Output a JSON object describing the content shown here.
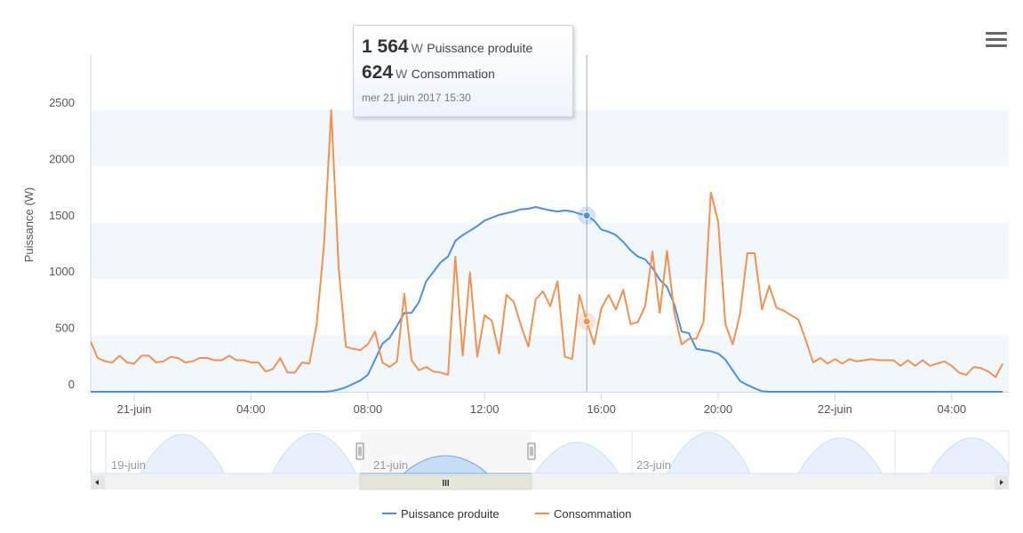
{
  "chart_data": {
    "type": "line",
    "title": "",
    "ylabel": "Puissance (W)",
    "xlabel": "",
    "ylim": [
      0,
      2600
    ],
    "y_ticks": [
      0,
      500,
      1000,
      1500,
      2000,
      2500
    ],
    "y_plot_bands": [
      [
        0,
        500
      ],
      [
        1000,
        1500
      ],
      [
        2000,
        2500
      ]
    ],
    "x_ticks": [
      {
        "time": "21 juin 00:00",
        "label": "21-juin"
      },
      {
        "time": "21 juin 04:00",
        "label": "04:00"
      },
      {
        "time": "21 juin 08:00",
        "label": "08:00"
      },
      {
        "time": "21 juin 12:00",
        "label": "12:00"
      },
      {
        "time": "21 juin 16:00",
        "label": "16:00"
      },
      {
        "time": "21 juin 20:00",
        "label": "20:00"
      },
      {
        "time": "22 juin 00:00",
        "label": "22-juin"
      },
      {
        "time": "22 juin 04:00",
        "label": "04:00"
      }
    ],
    "grid": false,
    "legend": "bottom",
    "series": [
      {
        "name": "Puissance produite",
        "color": "#4a90e2"
      },
      {
        "name": "Consommation",
        "color": "#f39150"
      }
    ],
    "data": [
      [
        "20 juin 22:30",
        0,
        450
      ],
      [
        "20 juin 22:45",
        0,
        300
      ],
      [
        "20 juin 23:00",
        0,
        270
      ],
      [
        "20 juin 23:15",
        0,
        260
      ],
      [
        "20 juin 23:30",
        0,
        320
      ],
      [
        "20 juin 23:45",
        0,
        260
      ],
      [
        "21 juin 00:00",
        0,
        250
      ],
      [
        "21 juin 00:15",
        0,
        320
      ],
      [
        "21 juin 00:30",
        0,
        320
      ],
      [
        "21 juin 00:45",
        0,
        260
      ],
      [
        "21 juin 01:00",
        0,
        270
      ],
      [
        "21 juin 01:15",
        0,
        310
      ],
      [
        "21 juin 01:30",
        0,
        300
      ],
      [
        "21 juin 01:45",
        0,
        260
      ],
      [
        "21 juin 02:00",
        0,
        270
      ],
      [
        "21 juin 02:15",
        0,
        300
      ],
      [
        "21 juin 02:30",
        0,
        300
      ],
      [
        "21 juin 02:45",
        0,
        280
      ],
      [
        "21 juin 03:00",
        0,
        280
      ],
      [
        "21 juin 03:15",
        0,
        320
      ],
      [
        "21 juin 03:30",
        0,
        280
      ],
      [
        "21 juin 03:45",
        0,
        280
      ],
      [
        "21 juin 04:00",
        0,
        260
      ],
      [
        "21 juin 04:15",
        0,
        260
      ],
      [
        "21 juin 04:30",
        0,
        180
      ],
      [
        "21 juin 04:45",
        0,
        200
      ],
      [
        "21 juin 05:00",
        0,
        300
      ],
      [
        "21 juin 05:15",
        0,
        170
      ],
      [
        "21 juin 05:30",
        0,
        170
      ],
      [
        "21 juin 05:45",
        0,
        260
      ],
      [
        "21 juin 06:00",
        0,
        250
      ],
      [
        "21 juin 06:15",
        0,
        600
      ],
      [
        "21 juin 06:30",
        0,
        1300
      ],
      [
        "21 juin 06:45",
        5,
        2500
      ],
      [
        "21 juin 07:00",
        20,
        1100
      ],
      [
        "21 juin 07:15",
        40,
        400
      ],
      [
        "21 juin 07:30",
        70,
        380
      ],
      [
        "21 juin 07:45",
        100,
        370
      ],
      [
        "21 juin 08:00",
        150,
        420
      ],
      [
        "21 juin 08:15",
        285,
        535
      ],
      [
        "21 juin 08:30",
        425,
        260
      ],
      [
        "21 juin 08:45",
        480,
        220
      ],
      [
        "21 juin 09:00",
        585,
        270
      ],
      [
        "21 juin 09:15",
        700,
        870
      ],
      [
        "21 juin 09:30",
        700,
        280
      ],
      [
        "21 juin 09:45",
        795,
        190
      ],
      [
        "21 juin 10:00",
        980,
        220
      ],
      [
        "21 juin 10:15",
        1065,
        180
      ],
      [
        "21 juin 10:30",
        1150,
        170
      ],
      [
        "21 juin 10:45",
        1200,
        150
      ],
      [
        "21 juin 11:00",
        1340,
        1200
      ],
      [
        "21 juin 11:15",
        1390,
        320
      ],
      [
        "21 juin 11:30",
        1430,
        1060
      ],
      [
        "21 juin 11:45",
        1470,
        310
      ],
      [
        "21 juin 12:00",
        1520,
        680
      ],
      [
        "21 juin 12:15",
        1545,
        630
      ],
      [
        "21 juin 12:30",
        1570,
        340
      ],
      [
        "21 juin 12:45",
        1585,
        860
      ],
      [
        "21 juin 13:00",
        1600,
        800
      ],
      [
        "21 juin 13:15",
        1620,
        585
      ],
      [
        "21 juin 13:30",
        1625,
        400
      ],
      [
        "21 juin 13:45",
        1640,
        820
      ],
      [
        "21 juin 14:00",
        1625,
        890
      ],
      [
        "21 juin 14:15",
        1610,
        760
      ],
      [
        "21 juin 14:30",
        1600,
        980
      ],
      [
        "21 juin 14:45",
        1610,
        310
      ],
      [
        "21 juin 15:00",
        1600,
        290
      ],
      [
        "21 juin 15:15",
        1580,
        860
      ],
      [
        "21 juin 15:30",
        1564,
        624
      ],
      [
        "21 juin 15:45",
        1520,
        420
      ],
      [
        "21 juin 16:00",
        1440,
        740
      ],
      [
        "21 juin 16:15",
        1420,
        860
      ],
      [
        "21 juin 16:30",
        1390,
        730
      ],
      [
        "21 juin 16:45",
        1330,
        905
      ],
      [
        "21 juin 17:00",
        1255,
        600
      ],
      [
        "21 juin 17:15",
        1200,
        620
      ],
      [
        "21 juin 17:30",
        1175,
        760
      ],
      [
        "21 juin 17:45",
        1100,
        1245
      ],
      [
        "21 juin 18:00",
        995,
        700
      ],
      [
        "21 juin 18:15",
        930,
        1250
      ],
      [
        "21 juin 18:30",
        775,
        700
      ],
      [
        "21 juin 18:45",
        535,
        420
      ],
      [
        "21 juin 19:00",
        520,
        470
      ],
      [
        "21 juin 19:15",
        380,
        470
      ],
      [
        "21 juin 19:30",
        370,
        620
      ],
      [
        "21 juin 19:45",
        360,
        1770
      ],
      [
        "21 juin 20:00",
        340,
        1510
      ],
      [
        "21 juin 20:15",
        285,
        600
      ],
      [
        "21 juin 20:30",
        190,
        420
      ],
      [
        "21 juin 20:45",
        95,
        690
      ],
      [
        "21 juin 21:00",
        60,
        1230
      ],
      [
        "21 juin 21:15",
        30,
        1230
      ],
      [
        "21 juin 21:30",
        5,
        730
      ],
      [
        "21 juin 21:45",
        0,
        940
      ],
      [
        "21 juin 22:00",
        0,
        745
      ],
      [
        "21 juin 22:15",
        0,
        720
      ],
      [
        "21 juin 22:30",
        0,
        680
      ],
      [
        "21 juin 22:45",
        0,
        640
      ],
      [
        "21 juin 23:00",
        0,
        460
      ],
      [
        "21 juin 23:15",
        0,
        260
      ],
      [
        "21 juin 23:30",
        0,
        300
      ],
      [
        "21 juin 23:45",
        0,
        250
      ],
      [
        "22 juin 00:00",
        0,
        290
      ],
      [
        "22 juin 00:15",
        0,
        250
      ],
      [
        "22 juin 00:30",
        0,
        290
      ],
      [
        "22 juin 00:45",
        0,
        270
      ],
      [
        "22 juin 01:00",
        0,
        280
      ],
      [
        "22 juin 01:15",
        0,
        290
      ],
      [
        "22 juin 01:30",
        0,
        280
      ],
      [
        "22 juin 01:45",
        0,
        280
      ],
      [
        "22 juin 02:00",
        0,
        280
      ],
      [
        "22 juin 02:15",
        0,
        230
      ],
      [
        "22 juin 02:30",
        0,
        280
      ],
      [
        "22 juin 02:45",
        0,
        230
      ],
      [
        "22 juin 03:00",
        0,
        280
      ],
      [
        "22 juin 03:15",
        0,
        230
      ],
      [
        "22 juin 03:30",
        0,
        250
      ],
      [
        "22 juin 03:45",
        0,
        270
      ],
      [
        "22 juin 04:00",
        0,
        230
      ],
      [
        "22 juin 04:15",
        0,
        170
      ],
      [
        "22 juin 04:30",
        0,
        150
      ],
      [
        "22 juin 04:45",
        0,
        220
      ],
      [
        "22 juin 05:00",
        0,
        210
      ],
      [
        "22 juin 05:15",
        0,
        180
      ],
      [
        "22 juin 05:30",
        0,
        130
      ],
      [
        "22 juin 05:45",
        0,
        250
      ]
    ],
    "hover_time": "21 juin 15:30"
  },
  "tooltip": {
    "produced_value": "1 564",
    "produced_unit": "W",
    "produced_name": "Puissance produite",
    "consumed_value": "624",
    "consumed_unit": "W",
    "consumed_name": "Consommation",
    "date": "mer 21 juin 2017 15:30"
  },
  "navigator": {
    "labels": [
      "19-juin",
      "21-juin",
      "23-juin"
    ],
    "scrollbar_grip": "III"
  },
  "menu_icon": "hamburger-menu-icon"
}
